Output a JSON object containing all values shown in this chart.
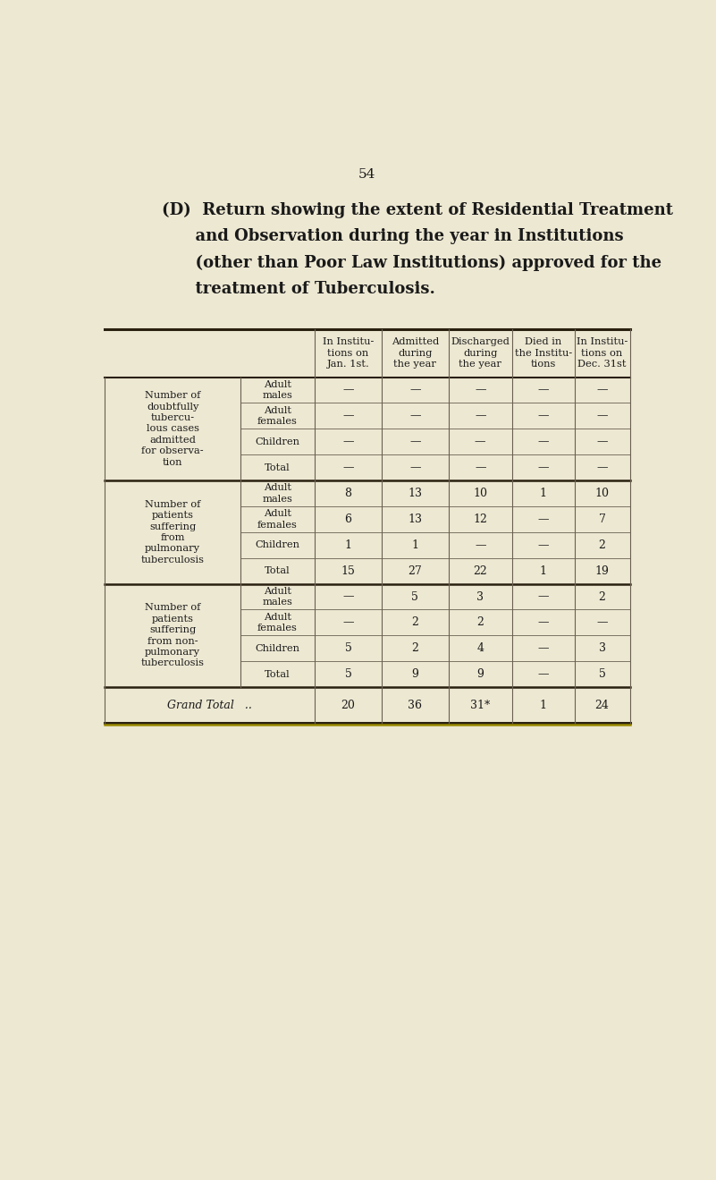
{
  "page_number": "54",
  "title_lines": [
    "(D)  Return showing the extent of Residential Treatment",
    "      and Observation during the year in Institutions",
    "      (other than Poor Law Institutions) approved for the",
    "      treatment of Tuberculosis."
  ],
  "bg_color": "#ede8d2",
  "col_headers": [
    "In Institu-\ntions on\nJan. 1st.",
    "Admitted\nduring\nthe year",
    "Discharged\nduring\nthe year",
    "Died in\nthe Institu-\ntions",
    "In Institu-\ntions on\nDec. 31st"
  ],
  "sections": [
    {
      "group_label": "Number of\ndoubtfully\ntubercu-\nlous cases\nadmitted\nfor observa-\ntion",
      "rows": [
        {
          "sub_label": "Adult\nmales",
          "values": [
            "—",
            "—",
            "—",
            "—",
            "—"
          ]
        },
        {
          "sub_label": "Adult\nfemales",
          "values": [
            "—",
            "—",
            "—",
            "—",
            "—"
          ]
        },
        {
          "sub_label": "Children",
          "values": [
            "—",
            "—",
            "—​",
            "—",
            "—"
          ]
        },
        {
          "sub_label": "Total",
          "values": [
            "—",
            "—",
            "—",
            "—",
            "—"
          ]
        }
      ]
    },
    {
      "group_label": "Number of\npatients\nsuffering\nfrom\npulmonary\ntuberculosis",
      "rows": [
        {
          "sub_label": "Adult\nmales",
          "values": [
            "8",
            "13",
            "10",
            "1",
            "10"
          ]
        },
        {
          "sub_label": "Adult\nfemales",
          "values": [
            "6",
            "13",
            "12",
            "—",
            "7"
          ]
        },
        {
          "sub_label": "Children",
          "values": [
            "1",
            "1",
            "—",
            "—",
            "2"
          ]
        },
        {
          "sub_label": "Total",
          "values": [
            "15",
            "27",
            "22",
            "1",
            "19"
          ]
        }
      ]
    },
    {
      "group_label": "Number of\npatients\nsuffering\nfrom non-\npulmonary\ntuberculosis",
      "rows": [
        {
          "sub_label": "Adult\nmales",
          "values": [
            "—",
            "5",
            "3",
            "—",
            "2"
          ]
        },
        {
          "sub_label": "Adult\nfemales",
          "values": [
            "—",
            "2",
            "2",
            "—",
            "—"
          ]
        },
        {
          "sub_label": "Children",
          "values": [
            "5",
            "2",
            "4",
            "—​",
            "3"
          ]
        },
        {
          "sub_label": "Total",
          "values": [
            "5",
            "9",
            "9",
            "—",
            "5"
          ]
        }
      ]
    }
  ],
  "grand_total": {
    "label": "Grand Total",
    "dots": "..",
    "values": [
      "20",
      "36",
      "31*",
      "1",
      "24"
    ]
  },
  "text_color": "#1a1a1a",
  "line_color": "#6a6050",
  "heavy_line_color": "#2a2010",
  "gold_line_color": "#9a8800"
}
